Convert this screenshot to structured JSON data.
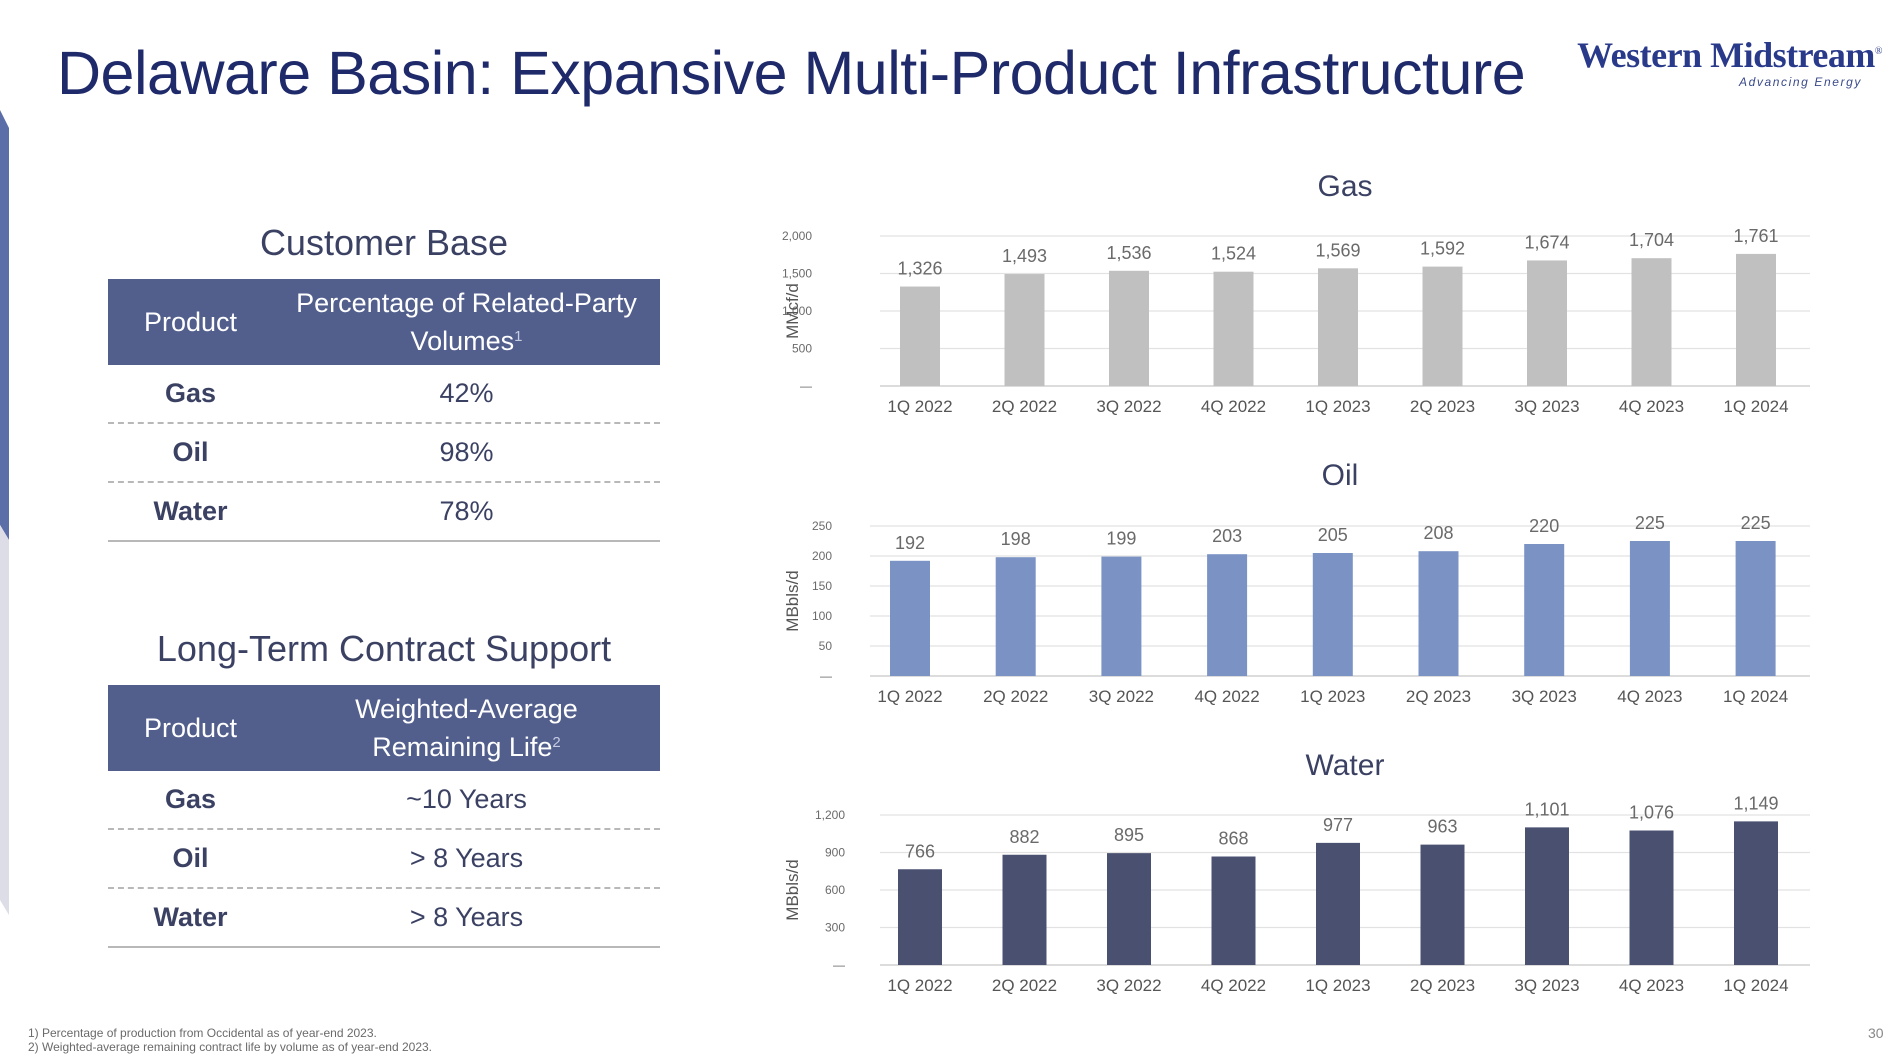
{
  "title": "Delaware Basin: Expansive Multi-Product Infrastructure",
  "logo": {
    "name": "Western Midstream",
    "trademark": "®",
    "tagline": "Advancing Energy"
  },
  "customer_base": {
    "title": "Customer Base",
    "header": {
      "product": "Product",
      "value": "Percentage of Related-Party Volumes",
      "note": "1"
    },
    "rows": [
      {
        "product": "Gas",
        "value": "42%"
      },
      {
        "product": "Oil",
        "value": "98%"
      },
      {
        "product": "Water",
        "value": "78%"
      }
    ]
  },
  "contract_support": {
    "title": "Long-Term Contract Support",
    "header": {
      "product": "Product",
      "value": "Weighted-Average Remaining Life",
      "note": "2"
    },
    "rows": [
      {
        "product": "Gas",
        "value": "~10 Years"
      },
      {
        "product": "Oil",
        "value": "> 8 Years"
      },
      {
        "product": "Water",
        "value": "> 8 Years"
      }
    ]
  },
  "colors": {
    "navy": "#1f2a6b",
    "header_fill": "#525f8d",
    "gas": "#c0c0c0",
    "oil": "#7b93c4",
    "water": "#4a5070"
  },
  "chart_data": [
    {
      "type": "bar",
      "title": "Gas",
      "ylabel": "MMcf/d",
      "categories": [
        "1Q 2022",
        "2Q 2022",
        "3Q 2022",
        "4Q 2022",
        "1Q 2023",
        "2Q 2023",
        "3Q 2023",
        "4Q 2023",
        "1Q 2024"
      ],
      "values": [
        1326,
        1493,
        1536,
        1524,
        1569,
        1592,
        1674,
        1704,
        1761
      ],
      "value_labels": [
        "1,326",
        "1,493",
        "1,536",
        "1,524",
        "1,569",
        "1,592",
        "1,674",
        "1,704",
        "1,761"
      ],
      "ylim": [
        0,
        2000
      ],
      "yticks": [
        0,
        500,
        1000,
        1500,
        2000
      ],
      "ytick_labels": [
        "—",
        "500",
        "1,000",
        "1,500",
        "2,000"
      ],
      "grid": true,
      "color": "#c0c0c0"
    },
    {
      "type": "bar",
      "title": "Oil",
      "ylabel": "MBbls/d",
      "categories": [
        "1Q 2022",
        "2Q 2022",
        "3Q 2022",
        "4Q 2022",
        "1Q 2023",
        "2Q 2023",
        "3Q 2023",
        "4Q 2023",
        "1Q 2024"
      ],
      "values": [
        192,
        198,
        199,
        203,
        205,
        208,
        220,
        225,
        225
      ],
      "value_labels": [
        "192",
        "198",
        "199",
        "203",
        "205",
        "208",
        "220",
        "225",
        "225"
      ],
      "ylim": [
        0,
        250
      ],
      "yticks": [
        0,
        50,
        100,
        150,
        200,
        250
      ],
      "ytick_labels": [
        "—",
        "50",
        "100",
        "150",
        "200",
        "250"
      ],
      "grid": true,
      "color": "#7b93c4"
    },
    {
      "type": "bar",
      "title": "Water",
      "ylabel": "MBbls/d",
      "categories": [
        "1Q 2022",
        "2Q 2022",
        "3Q 2022",
        "4Q 2022",
        "1Q 2023",
        "2Q 2023",
        "3Q 2023",
        "4Q 2023",
        "1Q 2024"
      ],
      "values": [
        766,
        882,
        895,
        868,
        977,
        963,
        1101,
        1076,
        1149
      ],
      "value_labels": [
        "766",
        "882",
        "895",
        "868",
        "977",
        "963",
        "1,101",
        "1,076",
        "1,149"
      ],
      "ylim": [
        0,
        1200
      ],
      "yticks": [
        0,
        300,
        600,
        900,
        1200
      ],
      "ytick_labels": [
        "—",
        "300",
        "600",
        "900",
        "1,200"
      ],
      "grid": true,
      "color": "#4a5070"
    }
  ],
  "footnotes": [
    "1)  Percentage of production from Occidental as of year-end 2023.",
    "2)  Weighted-average remaining contract life by volume as of year-end 2023."
  ],
  "page_number": "30"
}
